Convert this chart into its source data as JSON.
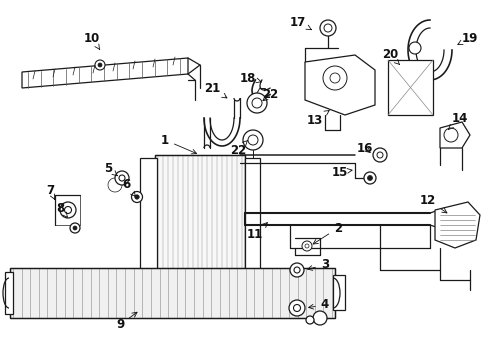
{
  "background_color": "#ffffff",
  "line_color": "#1a1a1a",
  "label_color": "#111111",
  "label_fontsize": 8.5,
  "fig_width": 4.9,
  "fig_height": 3.6,
  "dpi": 100
}
